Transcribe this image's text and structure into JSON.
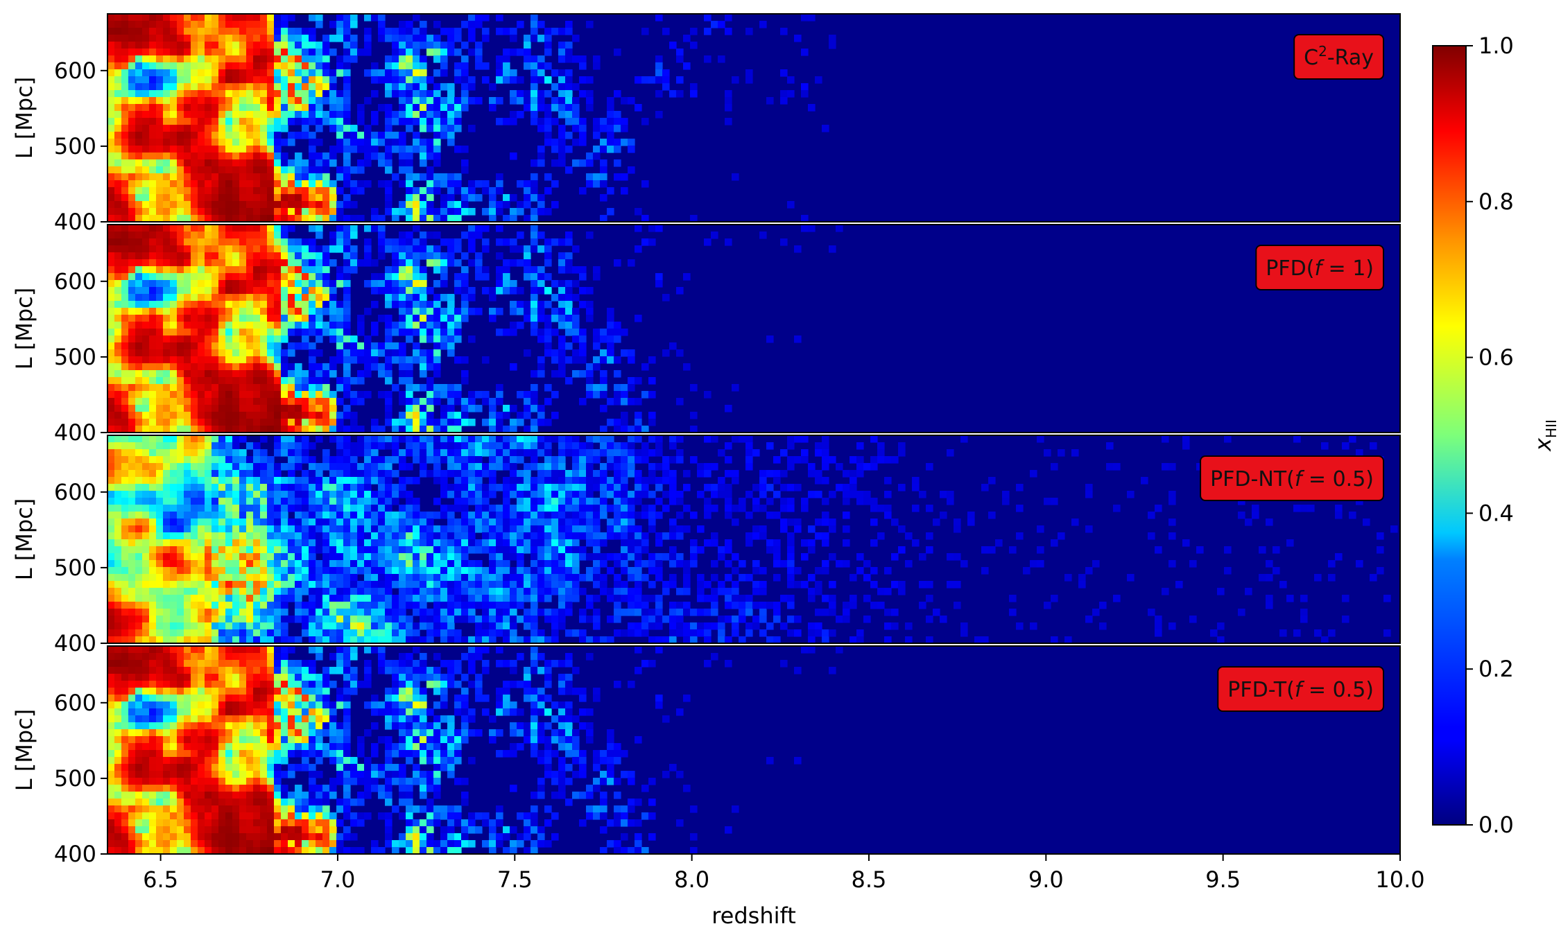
{
  "chart_data": {
    "type": "heatmap",
    "colormap": "jet",
    "xlabel": "redshift",
    "ylabel": "L [Mpc]",
    "xlim": [
      6.35,
      10.0
    ],
    "ylim": [
      400,
      675
    ],
    "x_ticks": [
      6.5,
      7.0,
      7.5,
      8.0,
      8.5,
      9.0,
      9.5,
      10.0
    ],
    "x_tick_labels": [
      "6.5",
      "7.0",
      "7.5",
      "8.0",
      "8.5",
      "9.0",
      "9.5",
      "10.0"
    ],
    "y_ticks": [
      400,
      500,
      600
    ],
    "y_tick_labels": [
      "400",
      "500",
      "600"
    ],
    "colorbar": {
      "label": "x_HII",
      "label_main": "x",
      "label_sub": "HII",
      "range": [
        0.0,
        1.0
      ],
      "ticks": [
        0.0,
        0.2,
        0.4,
        0.6,
        0.8,
        1.0
      ],
      "tick_labels": [
        "0.0",
        "0.2",
        "0.4",
        "0.6",
        "0.8",
        "1.0"
      ]
    },
    "panels": [
      {
        "label": "C²-Ray",
        "label_base": "C",
        "label_sup": "2",
        "label_rest": "-Ray",
        "fully_ionized_until_z": 6.82,
        "front_sharpness": 0.13,
        "alt_tail": false
      },
      {
        "label": "PFD(f = 1)",
        "label_base": "PFD(",
        "label_var": "f",
        "label_rest": " = 1)",
        "fully_ionized_until_z": 6.84,
        "front_sharpness": 0.13,
        "alt_tail": true
      },
      {
        "label": "PFD-NT(f = 0.5)",
        "label_base": "PFD-NT(",
        "label_var": "f",
        "label_rest": " = 0.5)",
        "fully_ionized_until_z": 6.65,
        "front_sharpness": 0.2,
        "alt_tail": true
      },
      {
        "label": "PFD-T(f = 0.5)",
        "label_base": "PFD-T(",
        "label_var": "f",
        "label_rest": " = 0.5)",
        "fully_ionized_until_z": 6.82,
        "front_sharpness": 0.13,
        "alt_tail": true
      }
    ],
    "label_box_color": "#e8111a",
    "grid": false
  }
}
